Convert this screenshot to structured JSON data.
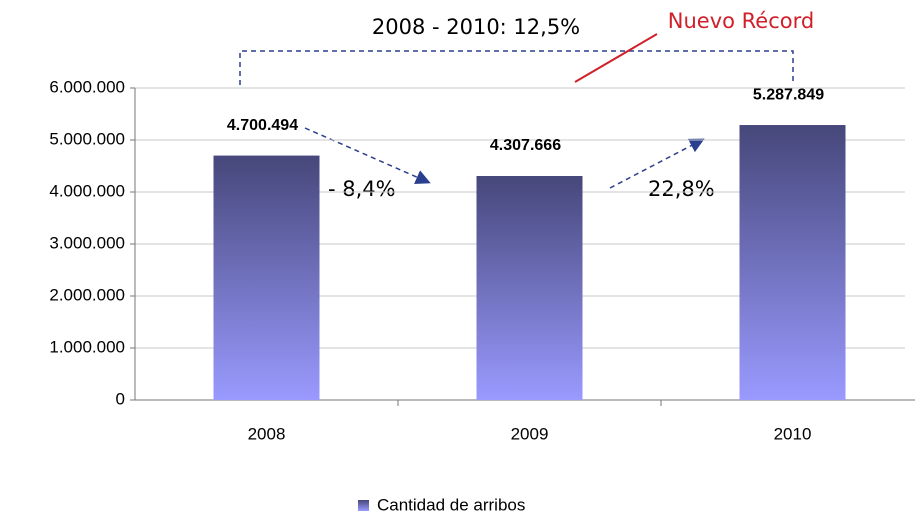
{
  "chart_data": {
    "type": "bar",
    "categories": [
      "2008",
      "2009",
      "2010"
    ],
    "series": [
      {
        "name": "Cantidad de arribos",
        "color": "#46477a",
        "values": [
          4700494,
          4307666,
          5287849
        ],
        "value_labels": [
          "4.700.494",
          "4.307.666",
          "5.287.849"
        ]
      }
    ],
    "ylim": [
      0,
      6000000
    ],
    "yticks": [
      {
        "value": 0,
        "label": "0"
      },
      {
        "value": 1000000,
        "label": "1.000.000"
      },
      {
        "value": 2000000,
        "label": "2.000.000"
      },
      {
        "value": 3000000,
        "label": "3.000.000"
      },
      {
        "value": 4000000,
        "label": "4.000.000"
      },
      {
        "value": 5000000,
        "label": "5.000.000"
      },
      {
        "value": 6000000,
        "label": "6.000.000"
      }
    ],
    "grid": true,
    "annotations": [
      "2008 - 2010: 12,5%",
      "Nuevo Récord",
      "- 8,4%",
      "22,8%"
    ]
  }
}
